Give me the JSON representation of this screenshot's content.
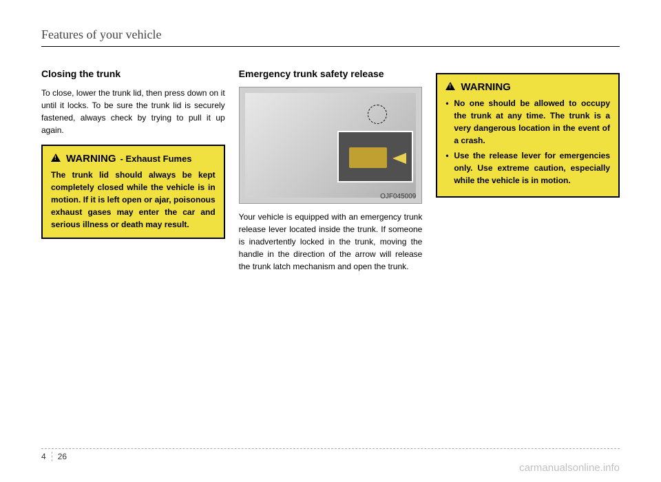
{
  "header": {
    "title": "Features of your vehicle"
  },
  "column1": {
    "section_title": "Closing the trunk",
    "body": "To close, lower the trunk lid, then press down on it until it locks. To be sure the trunk lid is securely fastened, always check by trying to pull it up again.",
    "warning": {
      "label": "WARNING",
      "subtitle": "- Exhaust Fumes",
      "text": "The trunk lid should always be kept completely closed while the vehicle is in motion. If it is left open or ajar, poisonous exhaust gases may enter the car and serious illness or death may result."
    }
  },
  "column2": {
    "section_title": "Emergency trunk safety release",
    "figure_caption": "OJF045009",
    "body": "Your vehicle is equipped with an emergency trunk release lever located inside the trunk. If someone is inadvertently locked in the trunk, moving the handle in the direction of the arrow will release the trunk latch mechanism and open the trunk."
  },
  "column3": {
    "warning": {
      "label": "WARNING",
      "items": [
        "No one should be allowed to occupy the trunk at any time. The trunk is a very dangerous location in the event of a crash.",
        "Use the release lever for emergencies only. Use extreme caution, especially while the vehicle is in motion."
      ]
    }
  },
  "footer": {
    "chapter": "4",
    "page": "26"
  },
  "watermark": "carmanualsonline.info",
  "colors": {
    "warning_bg": "#f0e040",
    "warning_border": "#000000",
    "page_bg": "#ffffff",
    "text": "#000000",
    "header_text": "#444444"
  }
}
